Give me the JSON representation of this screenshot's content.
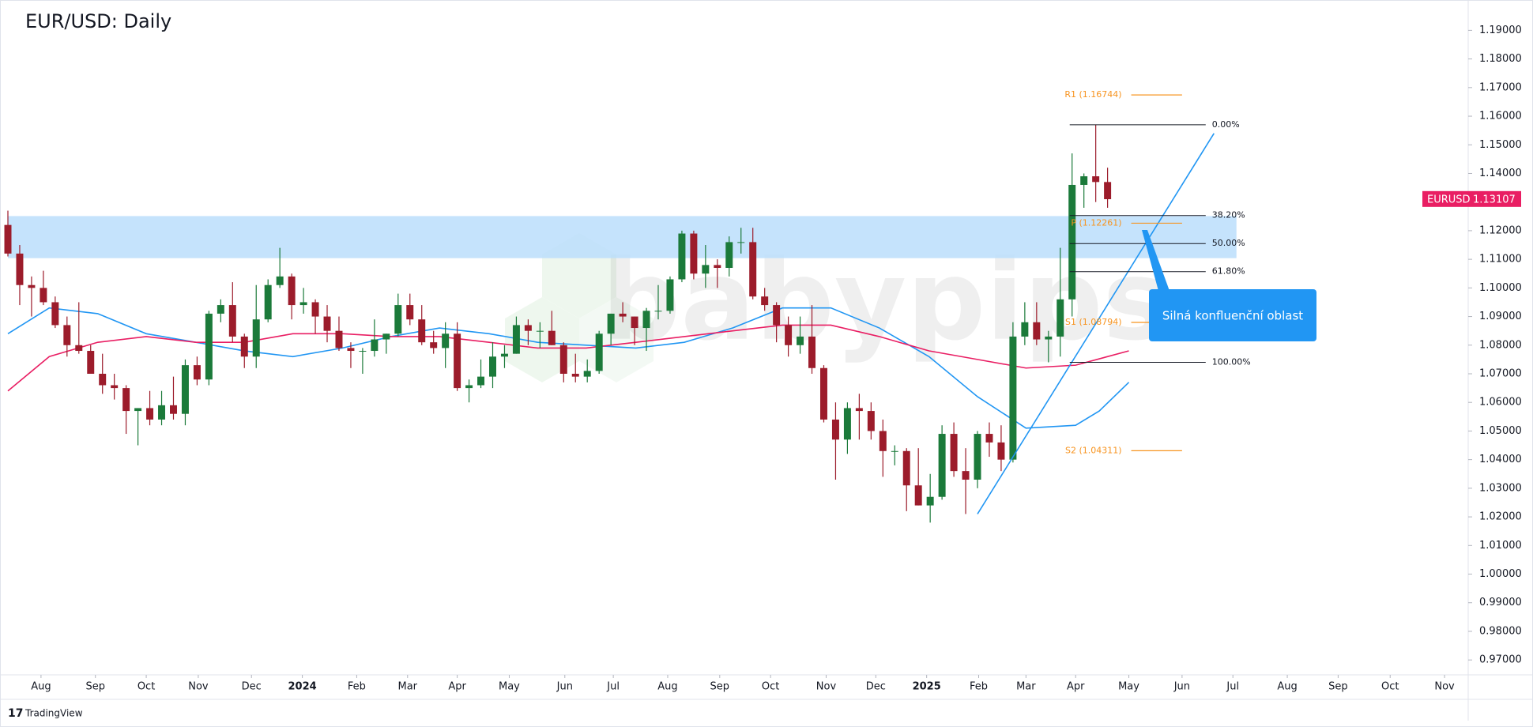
{
  "chart_data": {
    "type": "candlestick",
    "title": "EUR/USD: Daily",
    "symbol": "EURUSD",
    "last_price": 1.13107,
    "watermark": "babypips",
    "footer": "TradingView",
    "up_color": "#1b7a3a",
    "down_color": "#9c1c2b",
    "ylim": [
      0.9648,
      1.2006
    ],
    "yticks": [
      {
        "value": 0.97,
        "label": "0.97000"
      },
      {
        "value": 0.98,
        "label": "0.98000"
      },
      {
        "value": 0.99,
        "label": "0.99000"
      },
      {
        "value": 1.0,
        "label": "1.00000"
      },
      {
        "value": 1.01,
        "label": "1.01000"
      },
      {
        "value": 1.02,
        "label": "1.02000"
      },
      {
        "value": 1.03,
        "label": "1.03000"
      },
      {
        "value": 1.04,
        "label": "1.04000"
      },
      {
        "value": 1.05,
        "label": "1.05000"
      },
      {
        "value": 1.06,
        "label": "1.06000"
      },
      {
        "value": 1.07,
        "label": "1.07000"
      },
      {
        "value": 1.08,
        "label": "1.08000"
      },
      {
        "value": 1.09,
        "label": "1.09000"
      },
      {
        "value": 1.1,
        "label": "1.10000"
      },
      {
        "value": 1.11,
        "label": "1.11000"
      },
      {
        "value": 1.12,
        "label": "1.12000"
      },
      {
        "value": 1.13,
        "label": "1.13000"
      },
      {
        "value": 1.14,
        "label": "1.14000"
      },
      {
        "value": 1.15,
        "label": "1.15000"
      },
      {
        "value": 1.16,
        "label": "1.16000"
      },
      {
        "value": 1.17,
        "label": "1.17000"
      },
      {
        "value": 1.18,
        "label": "1.18000"
      },
      {
        "value": 1.19,
        "label": "1.19000"
      }
    ],
    "xlim": [
      0,
      123.5
    ],
    "xticks": [
      {
        "value": 2.8,
        "label": "Aug"
      },
      {
        "value": 7.4,
        "label": "Sep"
      },
      {
        "value": 11.7,
        "label": "Oct"
      },
      {
        "value": 16.1,
        "label": "Nov"
      },
      {
        "value": 20.6,
        "label": "Dec"
      },
      {
        "value": 24.9,
        "label": "2024"
      },
      {
        "value": 29.5,
        "label": "Feb"
      },
      {
        "value": 33.8,
        "label": "Mar"
      },
      {
        "value": 38.0,
        "label": "Apr"
      },
      {
        "value": 42.4,
        "label": "May"
      },
      {
        "value": 47.1,
        "label": "Jun"
      },
      {
        "value": 51.2,
        "label": "Jul"
      },
      {
        "value": 55.8,
        "label": "Aug"
      },
      {
        "value": 60.2,
        "label": "Sep"
      },
      {
        "value": 64.5,
        "label": "Oct"
      },
      {
        "value": 69.2,
        "label": "Nov"
      },
      {
        "value": 73.4,
        "label": "Dec"
      },
      {
        "value": 77.7,
        "label": "2025"
      },
      {
        "value": 82.1,
        "label": "Feb"
      },
      {
        "value": 86.1,
        "label": "Mar"
      },
      {
        "value": 90.3,
        "label": "Apr"
      },
      {
        "value": 94.8,
        "label": "May"
      },
      {
        "value": 99.3,
        "label": "Jun"
      },
      {
        "value": 103.6,
        "label": "Jul"
      },
      {
        "value": 108.2,
        "label": "Aug"
      },
      {
        "value": 112.5,
        "label": "Sep"
      },
      {
        "value": 116.9,
        "label": "Oct"
      },
      {
        "value": 121.5,
        "label": "Nov"
      }
    ],
    "candles": [
      [
        1.122,
        1.127,
        1.111,
        1.112
      ],
      [
        1.112,
        1.115,
        1.094,
        1.101
      ],
      [
        1.101,
        1.104,
        1.09,
        1.1
      ],
      [
        1.1,
        1.106,
        1.094,
        1.095
      ],
      [
        1.095,
        1.097,
        1.086,
        1.087
      ],
      [
        1.087,
        1.09,
        1.076,
        1.08
      ],
      [
        1.08,
        1.095,
        1.077,
        1.078
      ],
      [
        1.078,
        1.08,
        1.07,
        1.07
      ],
      [
        1.07,
        1.077,
        1.063,
        1.066
      ],
      [
        1.066,
        1.07,
        1.061,
        1.065
      ],
      [
        1.065,
        1.066,
        1.049,
        1.057
      ],
      [
        1.057,
        1.058,
        1.045,
        1.058
      ],
      [
        1.058,
        1.064,
        1.052,
        1.054
      ],
      [
        1.054,
        1.064,
        1.052,
        1.059
      ],
      [
        1.059,
        1.069,
        1.054,
        1.056
      ],
      [
        1.056,
        1.075,
        1.052,
        1.073
      ],
      [
        1.073,
        1.076,
        1.066,
        1.068
      ],
      [
        1.068,
        1.092,
        1.066,
        1.091
      ],
      [
        1.091,
        1.096,
        1.088,
        1.094
      ],
      [
        1.094,
        1.102,
        1.081,
        1.083
      ],
      [
        1.083,
        1.084,
        1.072,
        1.076
      ],
      [
        1.076,
        1.101,
        1.072,
        1.089
      ],
      [
        1.089,
        1.103,
        1.088,
        1.101
      ],
      [
        1.101,
        1.114,
        1.1,
        1.104
      ],
      [
        1.104,
        1.105,
        1.089,
        1.094
      ],
      [
        1.094,
        1.1,
        1.091,
        1.095
      ],
      [
        1.095,
        1.096,
        1.084,
        1.09
      ],
      [
        1.09,
        1.094,
        1.081,
        1.085
      ],
      [
        1.085,
        1.09,
        1.078,
        1.079
      ],
      [
        1.079,
        1.081,
        1.072,
        1.078
      ],
      [
        1.078,
        1.079,
        1.07,
        1.078
      ],
      [
        1.078,
        1.089,
        1.076,
        1.082
      ],
      [
        1.082,
        1.084,
        1.077,
        1.084
      ],
      [
        1.084,
        1.098,
        1.083,
        1.094
      ],
      [
        1.094,
        1.098,
        1.087,
        1.089
      ],
      [
        1.089,
        1.094,
        1.08,
        1.081
      ],
      [
        1.081,
        1.085,
        1.077,
        1.079
      ],
      [
        1.079,
        1.088,
        1.072,
        1.084
      ],
      [
        1.084,
        1.088,
        1.064,
        1.065
      ],
      [
        1.065,
        1.068,
        1.06,
        1.066
      ],
      [
        1.066,
        1.075,
        1.065,
        1.069
      ],
      [
        1.069,
        1.081,
        1.065,
        1.076
      ],
      [
        1.076,
        1.08,
        1.072,
        1.077
      ],
      [
        1.077,
        1.09,
        1.077,
        1.087
      ],
      [
        1.087,
        1.089,
        1.08,
        1.085
      ],
      [
        1.085,
        1.088,
        1.079,
        1.085
      ],
      [
        1.085,
        1.092,
        1.08,
        1.08
      ],
      [
        1.08,
        1.081,
        1.067,
        1.07
      ],
      [
        1.07,
        1.077,
        1.067,
        1.069
      ],
      [
        1.069,
        1.075,
        1.067,
        1.071
      ],
      [
        1.071,
        1.085,
        1.07,
        1.084
      ],
      [
        1.084,
        1.091,
        1.08,
        1.091
      ],
      [
        1.091,
        1.095,
        1.088,
        1.09
      ],
      [
        1.09,
        1.09,
        1.08,
        1.086
      ],
      [
        1.086,
        1.093,
        1.078,
        1.092
      ],
      [
        1.092,
        1.101,
        1.089,
        1.092
      ],
      [
        1.092,
        1.104,
        1.091,
        1.103
      ],
      [
        1.103,
        1.12,
        1.102,
        1.119
      ],
      [
        1.119,
        1.12,
        1.103,
        1.105
      ],
      [
        1.105,
        1.115,
        1.1,
        1.108
      ],
      [
        1.108,
        1.11,
        1.1,
        1.107
      ],
      [
        1.107,
        1.118,
        1.104,
        1.116
      ],
      [
        1.116,
        1.121,
        1.112,
        1.116
      ],
      [
        1.116,
        1.121,
        1.096,
        1.097
      ],
      [
        1.097,
        1.1,
        1.092,
        1.094
      ],
      [
        1.094,
        1.095,
        1.081,
        1.087
      ],
      [
        1.087,
        1.09,
        1.076,
        1.08
      ],
      [
        1.08,
        1.09,
        1.077,
        1.083
      ],
      [
        1.083,
        1.094,
        1.07,
        1.072
      ],
      [
        1.072,
        1.073,
        1.053,
        1.054
      ],
      [
        1.054,
        1.06,
        1.033,
        1.047
      ],
      [
        1.047,
        1.06,
        1.042,
        1.058
      ],
      [
        1.058,
        1.063,
        1.047,
        1.057
      ],
      [
        1.057,
        1.06,
        1.047,
        1.05
      ],
      [
        1.05,
        1.054,
        1.034,
        1.043
      ],
      [
        1.043,
        1.045,
        1.038,
        1.043
      ],
      [
        1.043,
        1.044,
        1.022,
        1.031
      ],
      [
        1.031,
        1.044,
        1.024,
        1.024
      ],
      [
        1.024,
        1.035,
        1.018,
        1.027
      ],
      [
        1.027,
        1.052,
        1.026,
        1.049
      ],
      [
        1.049,
        1.053,
        1.034,
        1.036
      ],
      [
        1.036,
        1.044,
        1.021,
        1.033
      ],
      [
        1.033,
        1.05,
        1.03,
        1.049
      ],
      [
        1.049,
        1.053,
        1.041,
        1.046
      ],
      [
        1.046,
        1.052,
        1.036,
        1.04
      ],
      [
        1.04,
        1.088,
        1.039,
        1.083
      ],
      [
        1.083,
        1.095,
        1.08,
        1.088
      ],
      [
        1.088,
        1.095,
        1.08,
        1.082
      ],
      [
        1.082,
        1.085,
        1.074,
        1.083
      ],
      [
        1.083,
        1.114,
        1.076,
        1.096
      ],
      [
        1.096,
        1.147,
        1.09,
        1.136
      ],
      [
        1.136,
        1.14,
        1.128,
        1.139
      ],
      [
        1.139,
        1.157,
        1.13,
        1.137
      ],
      [
        1.137,
        1.142,
        1.128,
        1.131
      ]
    ],
    "lines": [
      {
        "color": "#2196f3",
        "x": [
          0,
          3.5,
          7.6,
          11.7,
          15.9,
          20,
          24.1,
          28.3,
          32.4,
          36.5,
          40.7,
          44.8,
          48.9,
          53.1,
          57.2,
          61.3,
          65.5,
          69.6,
          73.7,
          77.9,
          82,
          86.1,
          90.3,
          92.3,
          94.8
        ],
        "values": [
          1.084,
          1.093,
          1.091,
          1.084,
          1.081,
          1.078,
          1.076,
          1.079,
          1.083,
          1.086,
          1.084,
          1.081,
          1.08,
          1.079,
          1.081,
          1.086,
          1.093,
          1.093,
          1.086,
          1.076,
          1.062,
          1.051,
          1.052,
          1.057,
          1.067
        ]
      },
      {
        "color": "#e91e63",
        "x": [
          0,
          3.5,
          7.6,
          11.7,
          15.9,
          20,
          24.1,
          28.3,
          32.4,
          36.5,
          40.7,
          44.8,
          48.9,
          53.1,
          57.2,
          61.3,
          65.5,
          69.6,
          73.7,
          77.9,
          82,
          86.1,
          90.3,
          94.8
        ],
        "values": [
          1.064,
          1.076,
          1.081,
          1.083,
          1.081,
          1.081,
          1.084,
          1.084,
          1.083,
          1.083,
          1.081,
          1.079,
          1.079,
          1.081,
          1.083,
          1.085,
          1.087,
          1.087,
          1.083,
          1.078,
          1.075,
          1.072,
          1.073,
          1.078
        ]
      }
    ],
    "zone": {
      "x": [
        0,
        103.9
      ],
      "range": [
        1.1104,
        1.1251
      ],
      "color": "#bbdefb"
    },
    "trendline": {
      "x": [
        82,
        102
      ],
      "values": [
        1.021,
        1.154
      ],
      "color": "#2196f3"
    },
    "fibonacci": {
      "x": [
        89.8,
        101.3
      ],
      "color": "#131722",
      "levels": [
        {
          "value": 0,
          "label": "0.00%",
          "price": 1.157
        },
        {
          "value": 38.2,
          "label": "38.20%",
          "price": 1.1253
        },
        {
          "value": 50,
          "label": "50.00%",
          "price": 1.1155
        },
        {
          "value": 61.8,
          "label": "61.80%",
          "price": 1.1057
        },
        {
          "value": 100,
          "label": "100.00%",
          "price": 1.074
        }
      ]
    },
    "pivots": {
      "x": [
        95,
        99.3
      ],
      "color": "#f7931e",
      "levels": [
        {
          "value": 1.16744,
          "label": "R1 (1.16744)"
        },
        {
          "value": 1.12261,
          "label": "P (1.12261)"
        },
        {
          "value": 1.08794,
          "label": "S1 (1.08794)"
        },
        {
          "value": 1.04311,
          "label": "S2 (1.04311)"
        }
      ]
    },
    "annotation": "Silná konfluenční oblast"
  }
}
